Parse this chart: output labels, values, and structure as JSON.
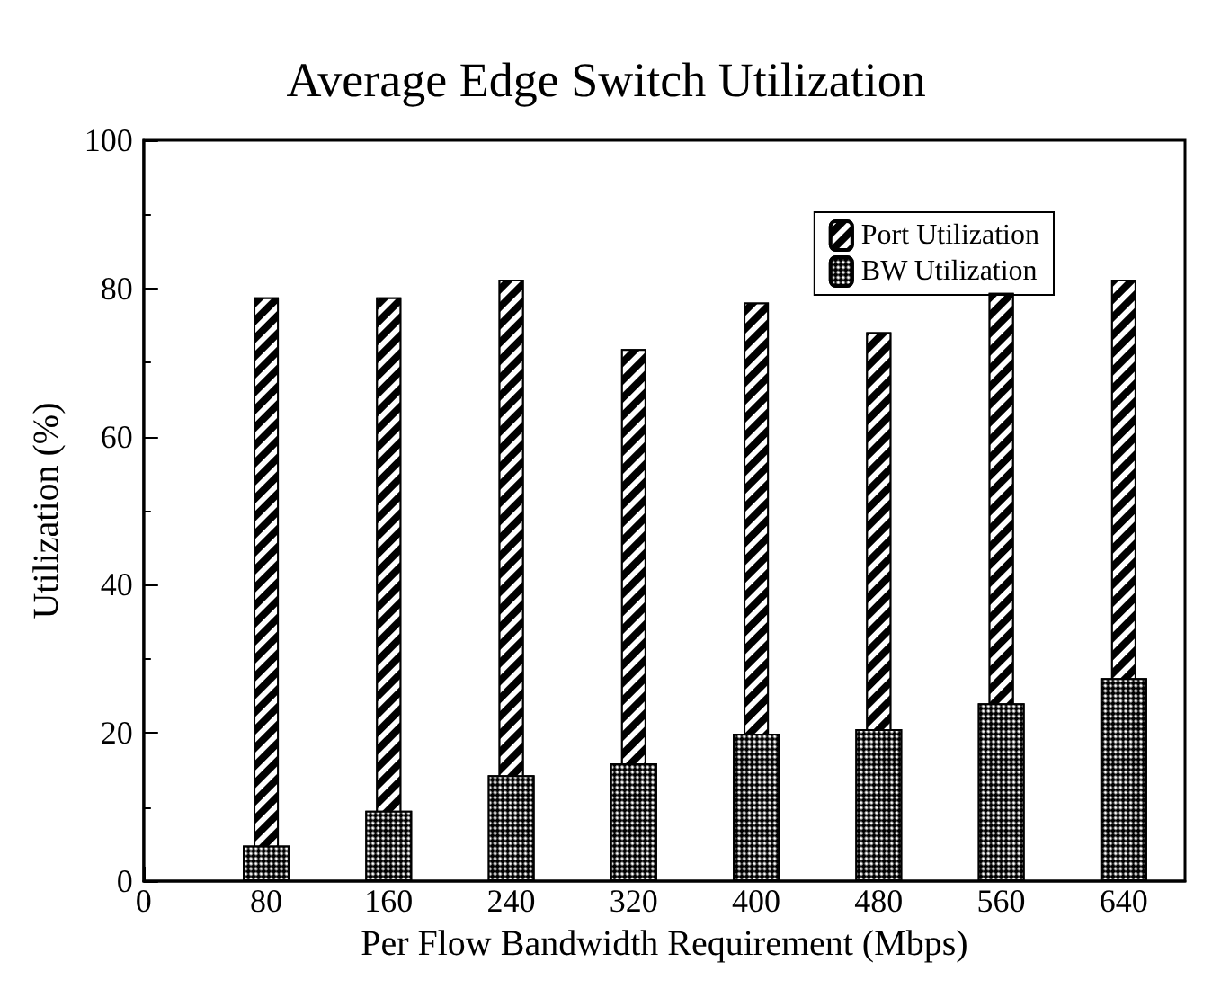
{
  "chart_data": {
    "type": "bar",
    "title": "Average Edge Switch Utilization",
    "xlabel": "Per Flow Bandwidth Requirement (Mbps)",
    "ylabel": "Utilization (%)",
    "x": [
      80,
      160,
      240,
      320,
      400,
      480,
      560,
      640
    ],
    "series": [
      {
        "name": "Port Utilization",
        "color": "#000000",
        "values": [
          78.8,
          78.8,
          81.2,
          71.8,
          78.1,
          74.1,
          79.4,
          81.2
        ]
      },
      {
        "name": "BW Utilization",
        "color": "#000000",
        "values": [
          4.8,
          9.5,
          14.3,
          15.9,
          19.9,
          20.5,
          24.0,
          27.4
        ]
      }
    ],
    "xlim": [
      0,
      680
    ],
    "xticks": [
      0,
      80,
      160,
      240,
      320,
      400,
      480,
      560,
      640
    ],
    "ylim": [
      0,
      100
    ],
    "yticks": [
      0,
      20,
      40,
      60,
      80,
      100
    ],
    "grid": false,
    "legend": "top right"
  }
}
